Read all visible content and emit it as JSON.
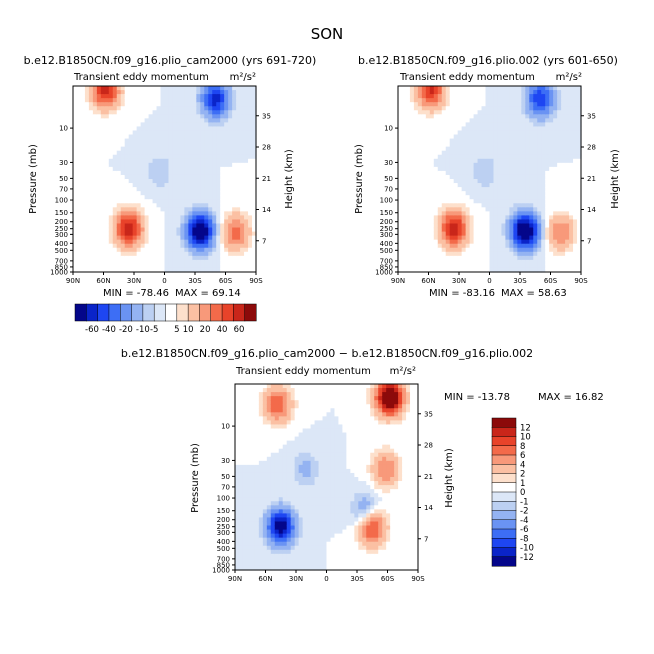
{
  "figure_title": "SON",
  "chart_data": [
    {
      "type": "heatmap",
      "title": "b.e12.B1850CN.f09_g16.plio_cam2000 (yrs 691-720)",
      "variable": "Transient eddy momentum",
      "units": "m²/s²",
      "ylabel": "Pressure (mb)",
      "ylabel_right": "Height (km)",
      "x_ticks": [
        "90N",
        "60N",
        "30N",
        "0",
        "30S",
        "60S",
        "90S"
      ],
      "y_ticks": [
        "10",
        "30",
        "50",
        "70",
        "100",
        "150",
        "200",
        "250",
        "300",
        "400",
        "500",
        "700",
        "850",
        "1000"
      ],
      "right_ticks": [
        "35",
        "28",
        "21",
        "14",
        "7"
      ],
      "min_label": "MIN = -78.46",
      "max_label": "MAX = 69.14",
      "min": -78.46,
      "max": 69.14,
      "features": [
        {
          "lat": 58,
          "p": 3,
          "value": 55
        },
        {
          "lat": 35,
          "p": 250,
          "value": 60
        },
        {
          "lat": -35,
          "p": 270,
          "value": -78
        },
        {
          "lat": -50,
          "p": 4,
          "value": -55
        },
        {
          "lat": -70,
          "p": 280,
          "value": 35
        },
        {
          "lat": 5,
          "p": 40,
          "value": -10
        }
      ]
    },
    {
      "type": "heatmap",
      "title": "b.e12.B1850CN.f09_g16.plio.002 (yrs 601-650)",
      "variable": "Transient eddy momentum",
      "units": "m²/s²",
      "ylabel": "Pressure (mb)",
      "ylabel_right": "Height (km)",
      "x_ticks": [
        "90N",
        "60N",
        "30N",
        "0",
        "30S",
        "60S",
        "90S"
      ],
      "y_ticks": [
        "10",
        "30",
        "50",
        "70",
        "100",
        "150",
        "200",
        "250",
        "300",
        "400",
        "500",
        "700",
        "850",
        "1000"
      ],
      "right_ticks": [
        "35",
        "28",
        "21",
        "14",
        "7"
      ],
      "min_label": "MIN = -83.16",
      "max_label": "MAX = 58.63",
      "min": -83.16,
      "max": 58.63,
      "features": [
        {
          "lat": 58,
          "p": 3,
          "value": 52
        },
        {
          "lat": 35,
          "p": 250,
          "value": 58
        },
        {
          "lat": -35,
          "p": 270,
          "value": -83
        },
        {
          "lat": -50,
          "p": 4,
          "value": -50
        },
        {
          "lat": -70,
          "p": 280,
          "value": 30
        },
        {
          "lat": 5,
          "p": 40,
          "value": -10
        }
      ]
    },
    {
      "type": "heatmap",
      "title": "b.e12.B1850CN.f09_g16.plio_cam2000 − b.e12.B1850CN.f09_g16.plio.002",
      "variable": "Transient eddy momentum",
      "units": "m²/s²",
      "ylabel": "Pressure (mb)",
      "ylabel_right": "Height (km)",
      "x_ticks": [
        "90N",
        "60N",
        "30N",
        "0",
        "30S",
        "60S",
        "90S"
      ],
      "y_ticks": [
        "10",
        "30",
        "50",
        "70",
        "100",
        "150",
        "200",
        "250",
        "300",
        "400",
        "500",
        "700",
        "850",
        "1000"
      ],
      "right_ticks": [
        "35",
        "28",
        "21",
        "14",
        "7"
      ],
      "min_label": "MIN = -13.78",
      "max_label": "MAX = 16.82",
      "min": -13.78,
      "max": 16.82,
      "features": [
        {
          "lat": 48,
          "p": 5,
          "value": 8
        },
        {
          "lat": -62,
          "p": 4,
          "value": 16.8
        },
        {
          "lat": -58,
          "p": 40,
          "value": 6
        },
        {
          "lat": -45,
          "p": 260,
          "value": 9
        },
        {
          "lat": 45,
          "p": 250,
          "value": -13.8
        },
        {
          "lat": -38,
          "p": 150,
          "value": -4
        },
        {
          "lat": 20,
          "p": 40,
          "value": -2.5
        }
      ]
    }
  ],
  "colorbar_top": {
    "labels": [
      "-60",
      "-40",
      "-20",
      "-10",
      "-5",
      "5",
      "10",
      "20",
      "40",
      "60"
    ],
    "colors": [
      "#04068a",
      "#0a24c9",
      "#1e46f2",
      "#3d6ef5",
      "#6a93f3",
      "#94b3f2",
      "#bcd0f2",
      "#dce7f7",
      "#ffffff",
      "#fde0cc",
      "#fbc0a3",
      "#f8997a",
      "#f36a4a",
      "#e8432a",
      "#c9261a",
      "#8c0a0a"
    ]
  },
  "colorbar_diff": {
    "labels": [
      "12",
      "10",
      "8",
      "6",
      "4",
      "2",
      "1",
      "0",
      "-1",
      "-2",
      "-4",
      "-6",
      "-8",
      "-10",
      "-12"
    ],
    "colors": [
      "#8c0a0a",
      "#c9261a",
      "#e8432a",
      "#f36a4a",
      "#f8997a",
      "#fbc0a3",
      "#fde0cc",
      "#ffffff",
      "#dce7f7",
      "#bcd0f2",
      "#94b3f2",
      "#6a93f3",
      "#3d6ef5",
      "#1e46f2",
      "#0a24c9",
      "#04068a"
    ]
  }
}
